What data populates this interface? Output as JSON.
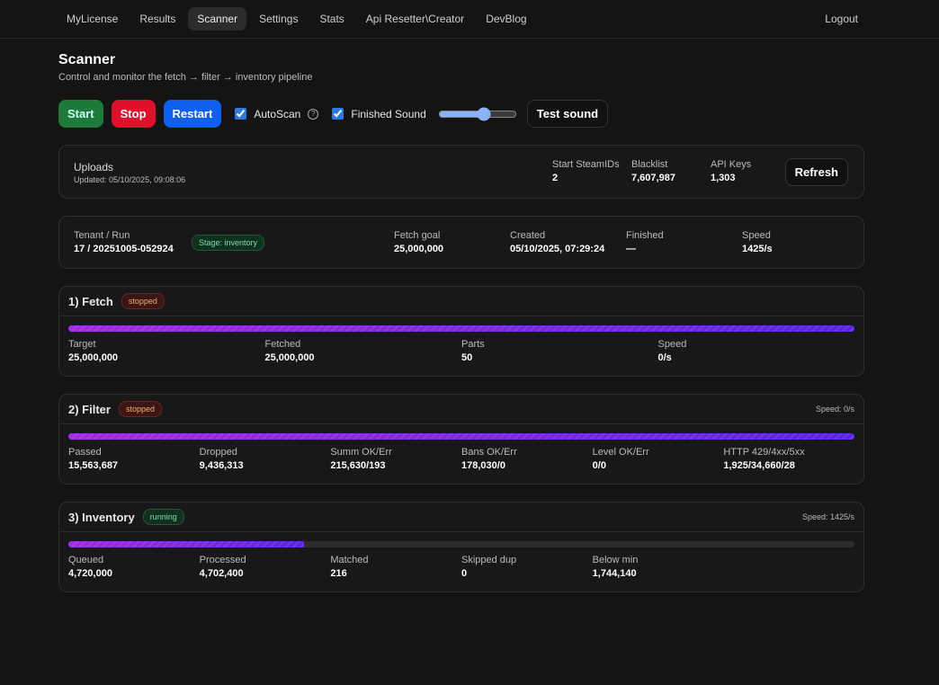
{
  "nav": {
    "items": [
      "MyLicense",
      "Results",
      "Scanner",
      "Settings",
      "Stats",
      "Api Resetter\\Creator",
      "DevBlog"
    ],
    "active_index": 2,
    "logout": "Logout"
  },
  "header": {
    "title": "Scanner",
    "subtitle": "Control and monitor the fetch → filter → inventory pipeline"
  },
  "controls": {
    "start": "Start",
    "stop": "Stop",
    "restart": "Restart",
    "autoscan": "AutoScan",
    "autoscan_checked": true,
    "finished_sound": "Finished Sound",
    "finished_sound_checked": true,
    "volume": 60,
    "test_sound": "Test sound"
  },
  "uploads": {
    "title": "Uploads",
    "updated": "Updated: 05/10/2025, 09:08:06",
    "stats": [
      {
        "label": "Start SteamIDs",
        "value": "2"
      },
      {
        "label": "Blacklist",
        "value": "7,607,987"
      },
      {
        "label": "API Keys",
        "value": "1,303"
      }
    ],
    "refresh": "Refresh"
  },
  "run": {
    "label": "Tenant / Run",
    "value": "17 / 20251005-052924",
    "stage": "Stage: inventory",
    "stats": [
      {
        "label": "Fetch goal",
        "value": "25,000,000"
      },
      {
        "label": "Created",
        "value": "05/10/2025, 07:29:24"
      },
      {
        "label": "Finished",
        "value": "—"
      },
      {
        "label": "Speed",
        "value": "1425/s"
      }
    ]
  },
  "stages": [
    {
      "title": "1) Fetch",
      "status": "stopped",
      "progress": 100,
      "stats": [
        {
          "label": "Target",
          "value": "25,000,000"
        },
        {
          "label": "Fetched",
          "value": "25,000,000"
        },
        {
          "label": "Parts",
          "value": "50"
        },
        {
          "label": "Speed",
          "value": "0/s"
        }
      ]
    },
    {
      "title": "2) Filter",
      "status": "stopped",
      "speed": "Speed: 0/s",
      "progress": 100,
      "stats": [
        {
          "label": "Passed",
          "value": "15,563,687"
        },
        {
          "label": "Dropped",
          "value": "9,436,313"
        },
        {
          "label": "Summ OK/Err",
          "value": "215,630/193"
        },
        {
          "label": "Bans OK/Err",
          "value": "178,030/0"
        },
        {
          "label": "Level OK/Err",
          "value": "0/0"
        },
        {
          "label": "HTTP 429/4xx/5xx",
          "value": "1,925/34,660/28"
        }
      ]
    },
    {
      "title": "3) Inventory",
      "status": "running",
      "speed": "Speed: 1425/s",
      "progress": 30,
      "stats": [
        {
          "label": "Queued",
          "value": "4,720,000"
        },
        {
          "label": "Processed",
          "value": "4,702,400"
        },
        {
          "label": "Matched",
          "value": "216"
        },
        {
          "label": "Skipped dup",
          "value": "0"
        },
        {
          "label": "Below min",
          "value": "1,744,140"
        }
      ]
    }
  ]
}
